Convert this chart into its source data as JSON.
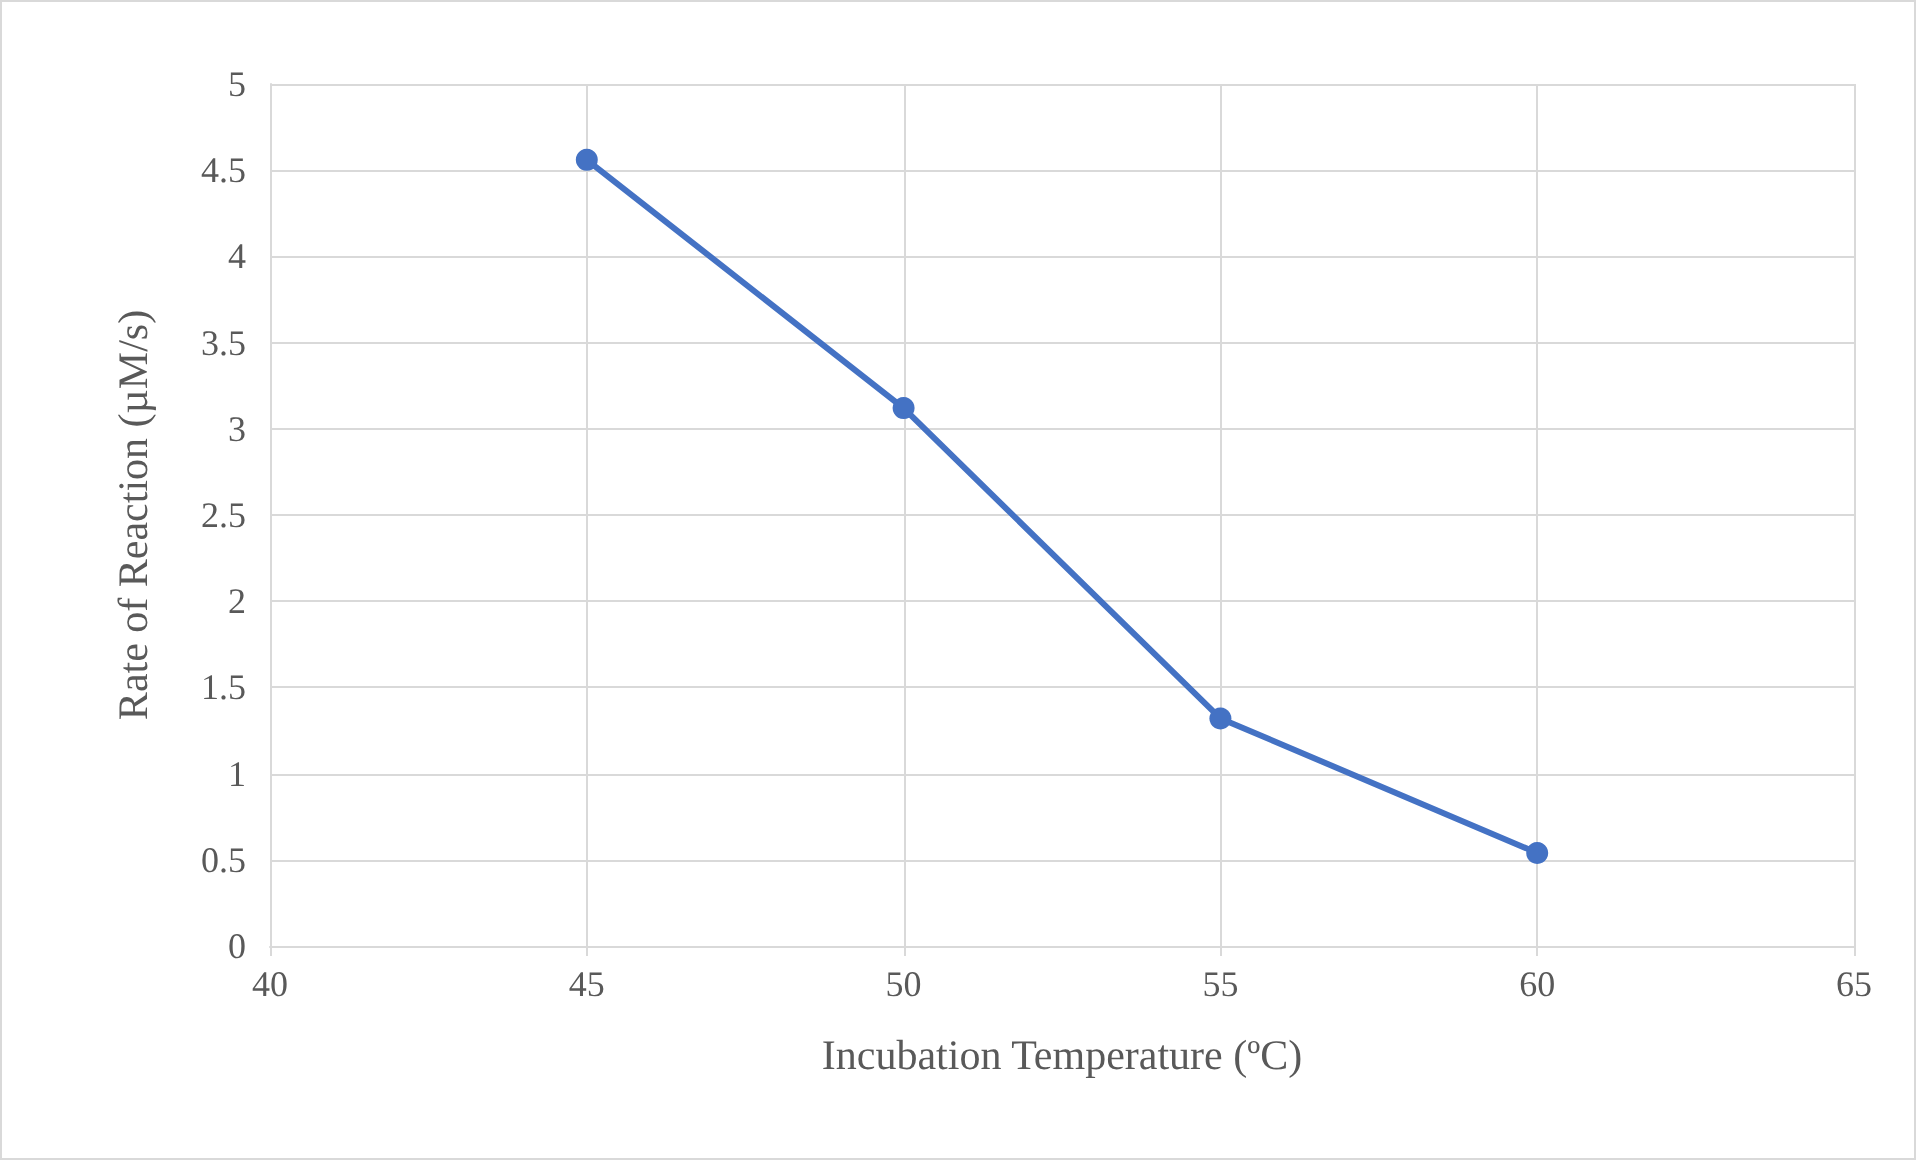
{
  "chart_data": {
    "type": "line",
    "xlabel": "Incubation Temperature (ºC)",
    "ylabel": "Rate of Reaction (µM/s)",
    "x": [
      45,
      50,
      55,
      60
    ],
    "series": [
      {
        "color": "#4472c4",
        "values": [
          4.56,
          3.12,
          1.32,
          0.54
        ]
      }
    ],
    "xlim": [
      40,
      65
    ],
    "xticks": [
      40,
      45,
      50,
      55,
      60,
      65
    ],
    "ylim": [
      0,
      5
    ],
    "yticks": [
      0,
      0.5,
      1,
      1.5,
      2,
      2.5,
      3,
      3.5,
      4,
      4.5,
      5
    ],
    "grid": true,
    "marker": "circle",
    "line_style": "solid"
  }
}
